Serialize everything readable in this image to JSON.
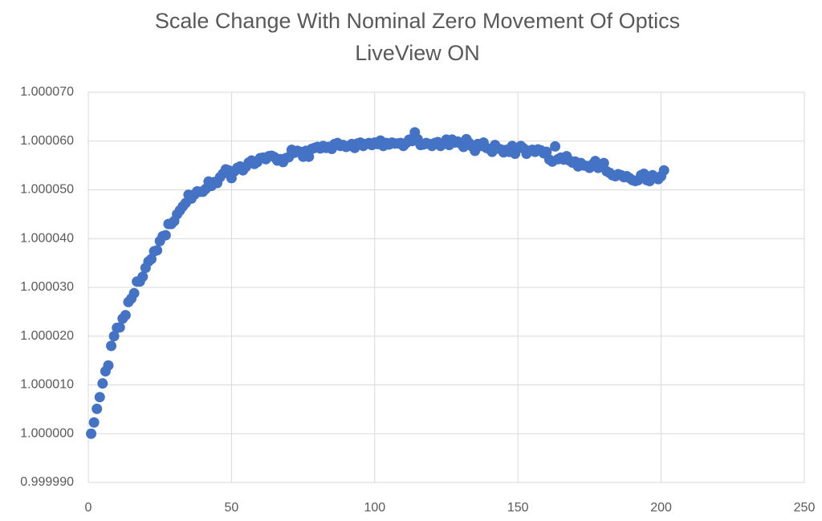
{
  "chart_data": {
    "type": "scatter",
    "title": [
      "Scale Change With Nominal Zero Movement Of Optics",
      "LiveView ON"
    ],
    "color": "#4472c4",
    "grid": true,
    "xlim": [
      0,
      250
    ],
    "xticks": [
      0,
      50,
      100,
      150,
      200,
      250
    ],
    "ylim": [
      0.99999,
      1.00007
    ],
    "yticks": [
      {
        "value": 0.99999,
        "label": "0.999990"
      },
      {
        "value": 1.0,
        "label": "1.000000"
      },
      {
        "value": 1.00001,
        "label": "1.000010"
      },
      {
        "value": 1.00002,
        "label": "1.000020"
      },
      {
        "value": 1.00003,
        "label": "1.000030"
      },
      {
        "value": 1.00004,
        "label": "1.000040"
      },
      {
        "value": 1.00005,
        "label": "1.000050"
      },
      {
        "value": 1.00006,
        "label": "1.000060"
      },
      {
        "value": 1.00007,
        "label": "1.000070"
      }
    ],
    "x": [
      1,
      2,
      3,
      4,
      5,
      6,
      7,
      8,
      9,
      10,
      11,
      12,
      13,
      14,
      15,
      16,
      17,
      18,
      19,
      20,
      21,
      22,
      23,
      24,
      25,
      26,
      27,
      28,
      29,
      30,
      31,
      32,
      33,
      34,
      35,
      36,
      37,
      38,
      39,
      40,
      41,
      42,
      43,
      44,
      45,
      46,
      47,
      48,
      49,
      50,
      51,
      52,
      53,
      54,
      55,
      56,
      57,
      58,
      59,
      60,
      61,
      62,
      63,
      64,
      65,
      66,
      67,
      68,
      69,
      70,
      71,
      72,
      73,
      74,
      75,
      76,
      77,
      78,
      79,
      80,
      81,
      82,
      83,
      84,
      85,
      86,
      87,
      88,
      89,
      90,
      91,
      92,
      93,
      94,
      95,
      96,
      97,
      98,
      99,
      100,
      101,
      102,
      103,
      104,
      105,
      106,
      107,
      108,
      109,
      110,
      111,
      112,
      113,
      114,
      115,
      116,
      117,
      118,
      119,
      120,
      121,
      122,
      123,
      124,
      125,
      126,
      127,
      128,
      129,
      130,
      131,
      132,
      133,
      134,
      135,
      136,
      137,
      138,
      139,
      140,
      141,
      142,
      143,
      144,
      145,
      146,
      147,
      148,
      149,
      150,
      151,
      152,
      153,
      154,
      155,
      156,
      157,
      158,
      159,
      160,
      161,
      162,
      163,
      164,
      165,
      166,
      167,
      168,
      169,
      170,
      171,
      172,
      173,
      174,
      175,
      176,
      177,
      178,
      179,
      180,
      181,
      182,
      183,
      184,
      185,
      186,
      187,
      188,
      189,
      190,
      191,
      192,
      193,
      194,
      195,
      196,
      197,
      198,
      199,
      200,
      201
    ],
    "values": [
      1.0,
      1.0000023,
      1.0000051,
      1.0000075,
      1.0000103,
      1.0000128,
      1.000014,
      1.000018,
      1.00002,
      1.0000217,
      1.0000218,
      1.0000236,
      1.0000243,
      1.000027,
      1.0000277,
      1.0000288,
      1.0000312,
      1.0000312,
      1.0000322,
      1.000034,
      1.0000353,
      1.0000358,
      1.0000374,
      1.0000376,
      1.0000395,
      1.0000405,
      1.0000407,
      1.000043,
      1.000043,
      1.0000436,
      1.000045,
      1.0000458,
      1.0000466,
      1.0000473,
      1.000049,
      1.0000482,
      1.000049,
      1.0000497,
      1.0000496,
      1.0000496,
      1.0000502,
      1.0000517,
      1.0000508,
      1.0000516,
      1.0000514,
      1.0000526,
      1.0000533,
      1.0000542,
      1.000054,
      1.0000524,
      1.0000538,
      1.0000545,
      1.0000548,
      1.000054,
      1.0000547,
      1.0000556,
      1.000056,
      1.0000553,
      1.0000557,
      1.0000565,
      1.0000566,
      1.0000563,
      1.0000569,
      1.000057,
      1.0000567,
      1.000056,
      1.0000563,
      1.0000557,
      1.0000565,
      1.0000567,
      1.0000582,
      1.0000576,
      1.000058,
      1.0000578,
      1.0000568,
      1.000058,
      1.0000568,
      1.0000584,
      1.0000586,
      1.0000588,
      1.0000585,
      1.000059,
      1.0000586,
      1.0000588,
      1.0000584,
      1.0000594,
      1.0000596,
      1.000059,
      1.0000592,
      1.0000588,
      1.000059,
      1.0000594,
      1.0000586,
      1.0000595,
      1.0000597,
      1.000059,
      1.0000594,
      1.0000596,
      1.0000592,
      1.0000597,
      1.0000594,
      1.0000601,
      1.000059,
      1.0000596,
      1.0000593,
      1.0000597,
      1.0000595,
      1.0000595,
      1.0000596,
      1.000059,
      1.0000596,
      1.0000603,
      1.00006,
      1.0000618,
      1.0000604,
      1.0000592,
      1.0000593,
      1.0000596,
      1.0000594,
      1.000059,
      1.0000596,
      1.0000598,
      1.000059,
      1.0000595,
      1.0000603,
      1.0000592,
      1.0000603,
      1.0000597,
      1.0000599,
      1.0000595,
      1.0000588,
      1.0000604,
      1.0000596,
      1.0000589,
      1.000058,
      1.0000594,
      1.000059,
      1.0000597,
      1.0000586,
      1.0000584,
      1.0000578,
      1.0000592,
      1.0000585,
      1.0000583,
      1.0000577,
      1.0000582,
      1.0000578,
      1.000059,
      1.0000574,
      1.0000585,
      1.000059,
      1.0000585,
      1.0000574,
      1.000058,
      1.0000582,
      1.0000578,
      1.0000583,
      1.0000581,
      1.0000575,
      1.0000578,
      1.0000562,
      1.0000558,
      1.0000589,
      1.0000563,
      1.0000566,
      1.0000562,
      1.0000569,
      1.000056,
      1.0000556,
      1.0000558,
      1.0000548,
      1.0000555,
      1.000055,
      1.0000549,
      1.0000545,
      1.0000552,
      1.0000559,
      1.0000545,
      1.000055,
      1.0000555,
      1.0000538,
      1.0000535,
      1.000053,
      1.0000528,
      1.0000532,
      1.000053,
      1.0000526,
      1.0000528,
      1.0000524,
      1.000052,
      1.0000518,
      1.000052,
      1.000053,
      1.0000533,
      1.000052,
      1.0000518,
      1.000053,
      1.0000526,
      1.0000522,
      1.0000528,
      1.000054
    ]
  }
}
